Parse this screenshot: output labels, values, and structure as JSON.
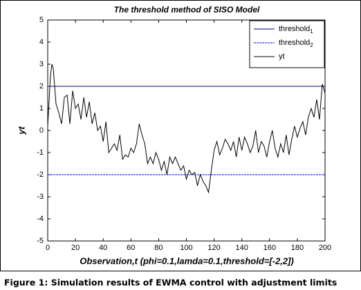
{
  "chart_data": {
    "type": "line",
    "title": "The threshold method of SISO Model",
    "xlabel": "Observation,t (phi=0.1,lamda=0.1,threshold=[-2,2])",
    "ylabel": "yt",
    "caption": "Figure 1: Simulation results of EWMA control with adjustment limits",
    "xlim": [
      0,
      200
    ],
    "xticks": [
      0,
      20,
      40,
      60,
      80,
      100,
      120,
      140,
      160,
      180,
      200
    ],
    "ylim": [
      -5,
      5
    ],
    "yticks": [
      -5,
      -4,
      -3,
      -2,
      -1,
      0,
      1,
      2,
      3,
      4,
      5
    ],
    "legend": "upper right",
    "series": [
      {
        "name": "threshold1",
        "color": "#000080",
        "x": [
          0,
          200
        ],
        "values": [
          2,
          2
        ]
      },
      {
        "name": "threshold2",
        "color": "#0000ff",
        "dash": "dashed",
        "x": [
          0,
          200
        ],
        "values": [
          -2,
          -2
        ]
      },
      {
        "name": "yt",
        "color": "#000000",
        "x": [
          0,
          2,
          3,
          4,
          6,
          8,
          10,
          12,
          14,
          16,
          18,
          20,
          22,
          24,
          26,
          28,
          30,
          32,
          34,
          36,
          38,
          40,
          42,
          44,
          46,
          48,
          50,
          52,
          54,
          56,
          58,
          60,
          62,
          64,
          66,
          68,
          70,
          72,
          74,
          76,
          78,
          80,
          82,
          84,
          86,
          88,
          90,
          92,
          94,
          96,
          98,
          100,
          102,
          104,
          106,
          108,
          110,
          112,
          114,
          116,
          118,
          120,
          122,
          124,
          126,
          128,
          130,
          132,
          134,
          136,
          138,
          140,
          142,
          144,
          146,
          148,
          150,
          152,
          154,
          156,
          158,
          160,
          162,
          164,
          166,
          168,
          170,
          172,
          174,
          176,
          178,
          180,
          182,
          184,
          186,
          188,
          190,
          192,
          194,
          196,
          198,
          200
        ],
        "values": [
          0.2,
          2.5,
          3.0,
          2.8,
          1.2,
          0.8,
          0.3,
          1.5,
          1.6,
          0.3,
          1.8,
          1.0,
          1.2,
          0.5,
          1.5,
          0.6,
          1.3,
          0.3,
          0.8,
          0.0,
          0.2,
          -0.5,
          0.4,
          -1.0,
          -0.8,
          -0.6,
          -0.9,
          -0.2,
          -1.3,
          -1.1,
          -1.2,
          -0.8,
          -1.0,
          -0.6,
          0.3,
          -0.2,
          -0.6,
          -1.5,
          -1.2,
          -1.5,
          -1.0,
          -1.3,
          -1.8,
          -1.4,
          -2.0,
          -1.2,
          -1.5,
          -1.2,
          -1.5,
          -1.8,
          -1.6,
          -2.2,
          -1.8,
          -2.0,
          -1.9,
          -2.5,
          -2.0,
          -2.3,
          -2.5,
          -2.8,
          -1.8,
          -0.9,
          -0.5,
          -1.1,
          -0.8,
          -0.4,
          -0.6,
          -0.9,
          -0.5,
          -1.2,
          -0.3,
          -0.9,
          -0.3,
          -0.6,
          -1.0,
          -0.7,
          0.0,
          -1.0,
          -0.5,
          -0.7,
          -1.2,
          -0.5,
          0.0,
          -0.8,
          -1.2,
          -0.6,
          -1.0,
          -0.2,
          -1.1,
          -0.4,
          0.2,
          -0.3,
          0.1,
          0.4,
          -0.2,
          0.6,
          1.0,
          0.6,
          1.4,
          0.5,
          2.1,
          1.7
        ]
      }
    ]
  }
}
